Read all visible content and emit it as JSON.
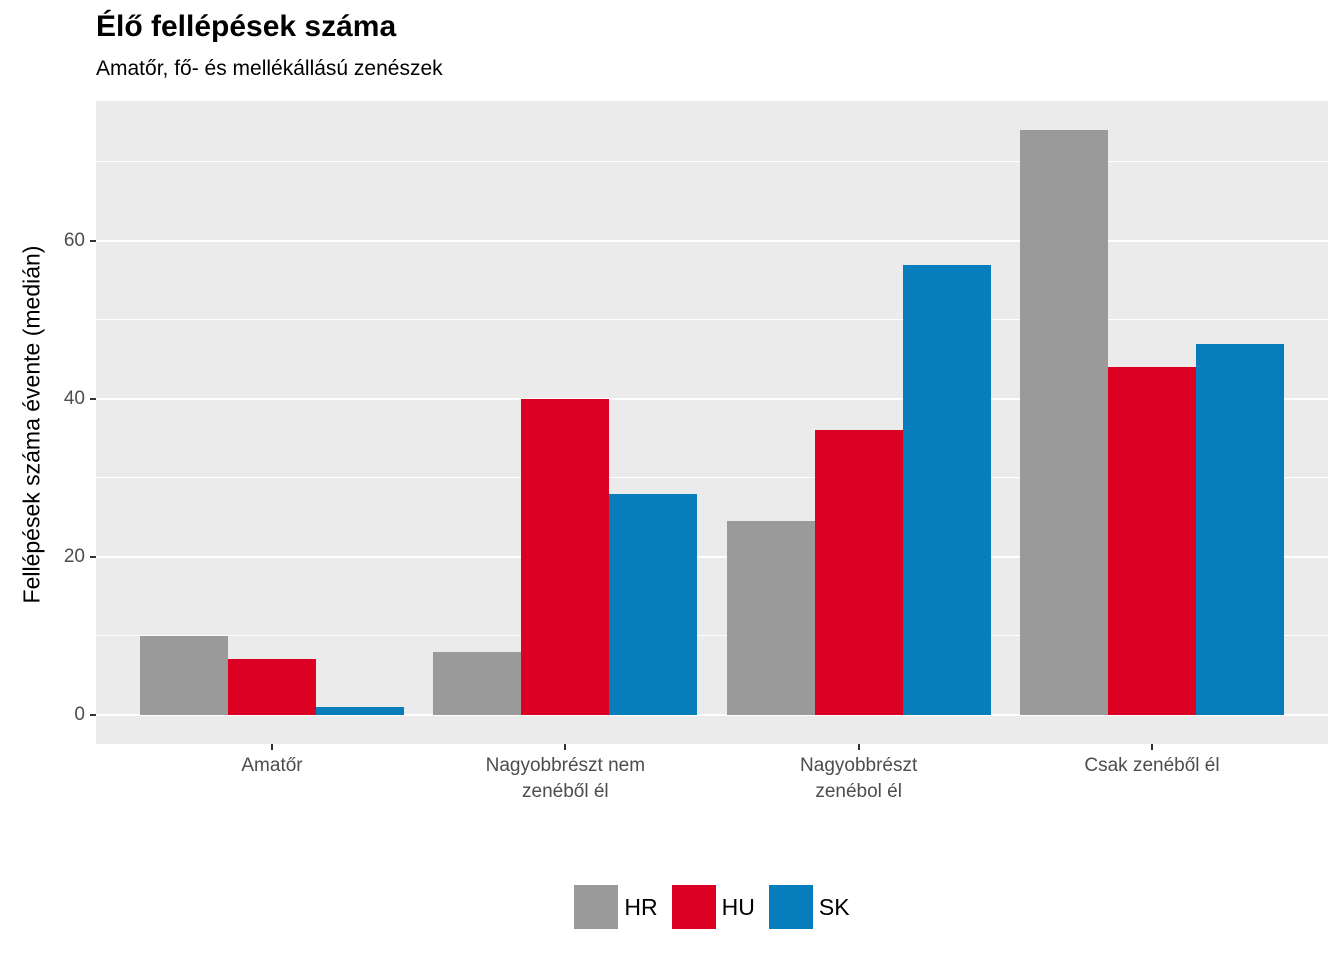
{
  "title": "Élő fellépések száma",
  "subtitle": "Amatőr, fő- és mellékállású zenészek",
  "chart_data": {
    "type": "bar",
    "grouped": true,
    "title": "Élő fellépések száma",
    "subtitle": "Amatőr, fő- és mellékállású zenészek",
    "xlabel": "",
    "ylabel": "Fellépések száma évente (medián)",
    "categories": [
      "Amatőr",
      "Nagyobbrészt nem\nzenéből él",
      "Nagyobbrészt\nzenébol él",
      "Csak zenéből él"
    ],
    "series": [
      {
        "name": "HR",
        "color": "#9A9A9A",
        "values": [
          10,
          8,
          24.5,
          74
        ]
      },
      {
        "name": "HU",
        "color": "#DC0022",
        "values": [
          7,
          40,
          36,
          44
        ]
      },
      {
        "name": "SK",
        "color": "#077DBC",
        "values": [
          1,
          28,
          57,
          47
        ]
      }
    ],
    "y_ticks_major": [
      0,
      20,
      40,
      60
    ],
    "y_ticks_minor": [
      10,
      30,
      50,
      70
    ],
    "ylim": [
      0,
      74
    ],
    "y_range_expanded": [
      -3.7,
      77.7
    ],
    "grid": "on",
    "legend_position": "bottom",
    "colors": {
      "panel_background": "#EBEBEB",
      "gridline": "#FFFFFF",
      "axis_text": "#4D4D4D",
      "tick_mark": "#333333",
      "title_text": "#000000"
    }
  }
}
